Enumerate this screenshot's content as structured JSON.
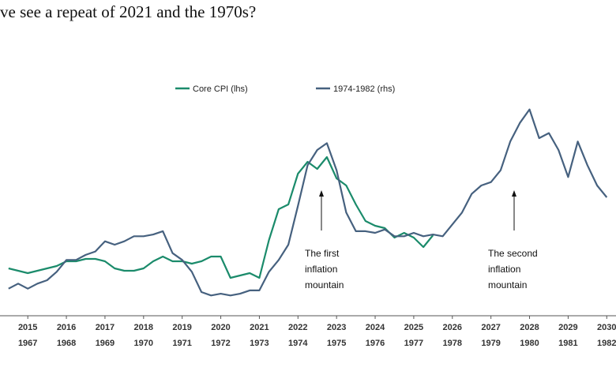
{
  "chart_data": {
    "type": "line",
    "title": "ve see a repeat of 2021 and the 1970s?",
    "xlim": [
      2014.28,
      2030.24
    ],
    "xticks": [
      2015,
      2016,
      2017,
      2018,
      2019,
      2020,
      2021,
      2022,
      2023,
      2024,
      2025,
      2026,
      2027,
      2028,
      2029,
      2030
    ],
    "x2lim": [
      1966.28,
      1982.24
    ],
    "x2ticks": [
      1967,
      1968,
      1969,
      1970,
      1971,
      1972,
      1973,
      1974,
      1975,
      1976,
      1977,
      1978,
      1979,
      1980,
      1981,
      1982
    ],
    "ylim": [
      0,
      10
    ],
    "y2lim": [
      2,
      16
    ],
    "x": [
      2014.5,
      2014.75,
      2015.0,
      2015.25,
      2015.5,
      2015.75,
      2016.0,
      2016.25,
      2016.5,
      2016.75,
      2017.0,
      2017.25,
      2017.5,
      2017.75,
      2018.0,
      2018.25,
      2018.5,
      2018.75,
      2019.0,
      2019.25,
      2019.5,
      2019.75,
      2020.0,
      2020.25,
      2020.5,
      2020.75,
      2021.0,
      2021.25,
      2021.5,
      2021.75,
      2022.0,
      2022.25,
      2022.5,
      2022.75,
      2023.0,
      2023.25,
      2023.5,
      2023.75,
      2024.0,
      2024.25,
      2024.5,
      2024.75,
      2025.0,
      2025.25,
      2025.5,
      2025.75,
      2026.0,
      2026.25,
      2026.5,
      2026.75,
      2027.0,
      2027.25,
      2027.5,
      2027.75,
      2028.0,
      2028.25,
      2028.5,
      2028.75,
      2029.0,
      2029.25,
      2029.5,
      2029.75,
      2030.0
    ],
    "series": [
      {
        "name": "Core CPI (lhs)",
        "color": "#1b8b6b",
        "values": [
          2.0,
          1.9,
          1.8,
          1.9,
          2.0,
          2.1,
          2.3,
          2.3,
          2.4,
          2.4,
          2.3,
          2.0,
          1.9,
          1.9,
          2.0,
          2.3,
          2.5,
          2.3,
          2.3,
          2.2,
          2.3,
          2.5,
          2.5,
          1.6,
          1.7,
          1.8,
          1.6,
          3.2,
          4.5,
          4.7,
          6.0,
          6.5,
          6.2,
          6.7,
          5.8,
          5.5,
          4.7,
          4.0,
          3.8,
          3.7,
          3.3,
          3.5,
          3.3,
          2.9,
          3.4,
          null,
          null,
          null,
          null,
          null,
          null,
          null,
          null,
          null,
          null,
          null,
          null,
          null,
          null,
          null,
          null,
          null,
          null
        ]
      },
      {
        "name": "1974-1982 (rhs)",
        "color": "#46617f",
        "axis": "y2",
        "values": [
          3.6,
          3.9,
          3.6,
          3.9,
          4.1,
          4.6,
          5.3,
          5.3,
          5.6,
          5.8,
          6.4,
          6.2,
          6.4,
          6.7,
          6.7,
          6.8,
          7.0,
          5.7,
          5.3,
          4.6,
          3.4,
          3.2,
          3.3,
          3.2,
          3.3,
          3.5,
          3.5,
          4.6,
          5.3,
          6.2,
          8.5,
          10.9,
          11.8,
          12.2,
          10.6,
          8.1,
          7.0,
          7.0,
          6.9,
          7.1,
          6.7,
          6.7,
          6.9,
          6.7,
          6.8,
          6.7,
          7.4,
          8.1,
          9.2,
          9.7,
          9.9,
          10.6,
          12.3,
          13.4,
          14.2,
          12.5,
          12.8,
          11.8,
          10.2,
          12.3,
          10.9,
          9.7,
          9.0
        ]
      }
    ],
    "annotations": [
      {
        "lines": [
          "The first",
          "inflation",
          "mountain"
        ]
      },
      {
        "lines": [
          "The second",
          "inflation",
          "mountain"
        ]
      }
    ]
  }
}
